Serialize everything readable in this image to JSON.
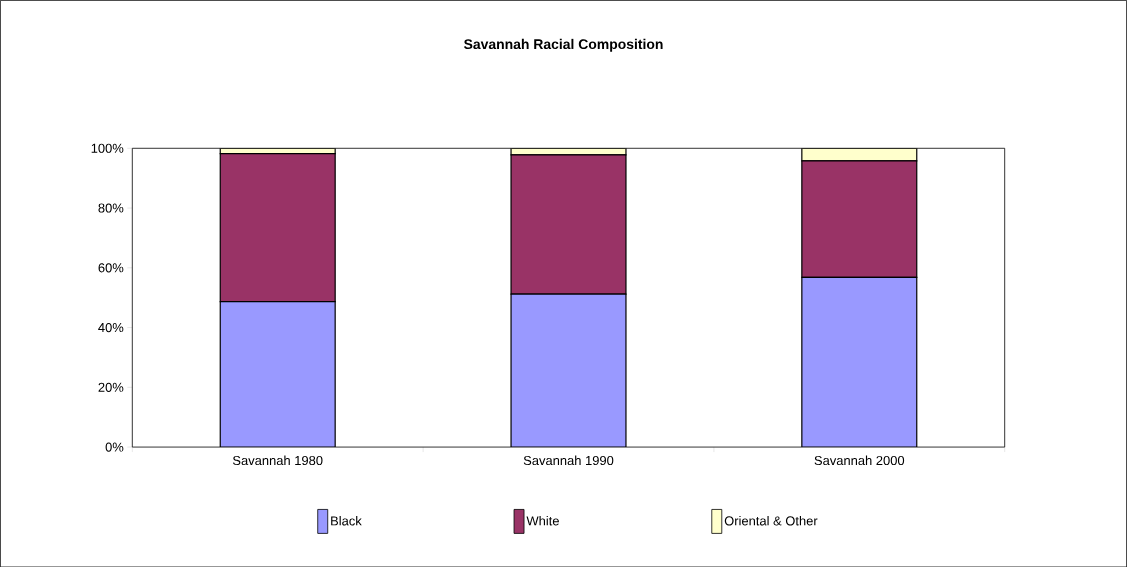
{
  "chart_data": {
    "type": "bar",
    "stacked": true,
    "title": "Savannah Racial Composition",
    "categories": [
      "Savannah 1980",
      "Savannah 1990",
      "Savannah 2000"
    ],
    "series": [
      {
        "name": "Black",
        "color": "#9999ff",
        "values": [
          48.7,
          51.2,
          56.8
        ]
      },
      {
        "name": "White",
        "color": "#993366",
        "values": [
          49.5,
          46.6,
          39.0
        ]
      },
      {
        "name": "Oriental & Other",
        "color": "#ffffcc",
        "values": [
          1.8,
          2.2,
          4.2
        ]
      }
    ],
    "ylim": [
      0,
      100
    ],
    "yticks": [
      {
        "value": 0,
        "label": "0%"
      },
      {
        "value": 20,
        "label": "20%"
      },
      {
        "value": 40,
        "label": "40%"
      },
      {
        "value": 60,
        "label": "60%"
      },
      {
        "value": 80,
        "label": "80%"
      },
      {
        "value": 100,
        "label": "100%"
      }
    ],
    "grid": false,
    "legend": "bottom"
  }
}
